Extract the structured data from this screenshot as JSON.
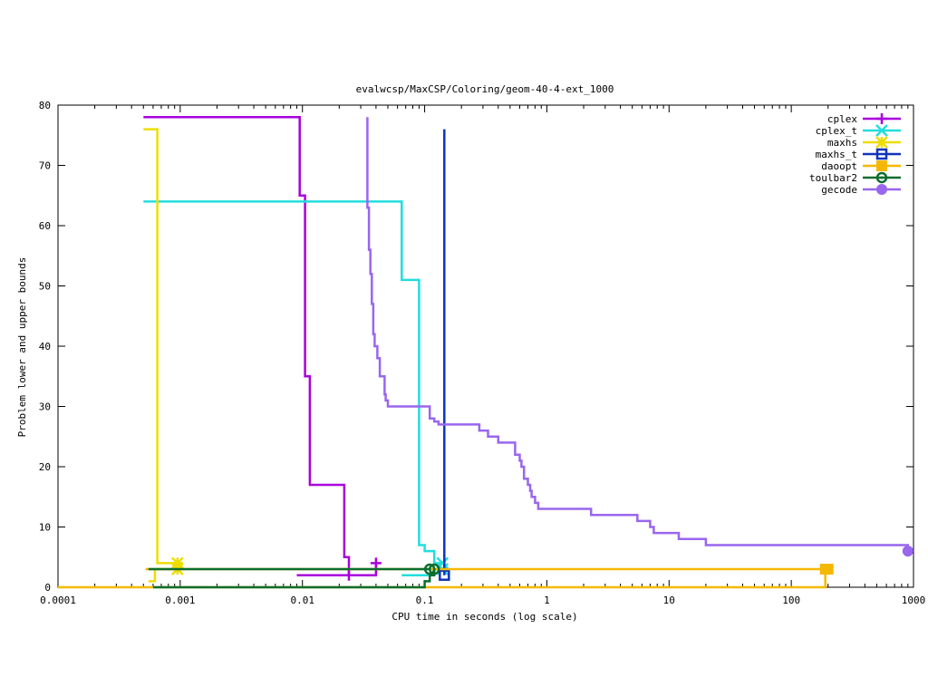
{
  "chart_data": {
    "type": "line",
    "title": "evalwcsp/MaxCSP/Coloring/geom-40-4-ext_1000",
    "xlabel": "CPU time in seconds (log scale)",
    "ylabel": "Problem lower and upper bounds",
    "x_scale": "log",
    "xlim": [
      0.0001,
      1000
    ],
    "ylim": [
      0,
      80
    ],
    "x_ticks": [
      0.0001,
      0.001,
      0.01,
      0.1,
      1,
      10,
      100,
      1000
    ],
    "x_tick_labels": [
      "0.0001",
      "0.001",
      "0.01",
      "0.1",
      "1",
      "10",
      "100",
      "1000"
    ],
    "y_ticks": [
      0,
      10,
      20,
      30,
      40,
      50,
      60,
      70,
      80
    ],
    "y_tick_labels": [
      "0",
      "10",
      "20",
      "30",
      "40",
      "50",
      "60",
      "70",
      "80"
    ],
    "grid": false,
    "legend_position": "top-right",
    "series": [
      {
        "name": "cplex",
        "color": "#aa00dd",
        "marker": "plus",
        "segments": [
          [
            [
              0.0005,
              78
            ],
            [
              0.0095,
              78
            ],
            [
              0.0095,
              65
            ],
            [
              0.0105,
              65
            ],
            [
              0.0105,
              35
            ],
            [
              0.0115,
              35
            ],
            [
              0.0115,
              17
            ],
            [
              0.022,
              17
            ],
            [
              0.022,
              5
            ],
            [
              0.024,
              5
            ],
            [
              0.024,
              2
            ]
          ],
          [
            [
              0.009,
              2
            ],
            [
              0.024,
              2
            ],
            [
              0.04,
              2
            ],
            [
              0.04,
              4
            ]
          ]
        ]
      },
      {
        "name": "cplex_t",
        "color": "#22dddd",
        "marker": "x",
        "segments": [
          [
            [
              0.0005,
              64
            ],
            [
              0.065,
              64
            ],
            [
              0.065,
              51
            ],
            [
              0.09,
              51
            ],
            [
              0.09,
              7
            ],
            [
              0.1,
              7
            ],
            [
              0.1,
              6
            ],
            [
              0.12,
              6
            ],
            [
              0.12,
              4
            ],
            [
              0.14,
              4
            ]
          ],
          [
            [
              0.065,
              2
            ],
            [
              0.12,
              2
            ],
            [
              0.12,
              3
            ],
            [
              0.14,
              3
            ]
          ]
        ]
      },
      {
        "name": "maxhs",
        "color": "#eedd00",
        "marker": "star",
        "segments": [
          [
            [
              0.0005,
              76
            ],
            [
              0.00065,
              76
            ],
            [
              0.00065,
              4
            ],
            [
              0.00095,
              4
            ]
          ],
          [
            [
              0.00055,
              1
            ],
            [
              0.00062,
              1
            ],
            [
              0.00062,
              3
            ],
            [
              0.00095,
              3
            ]
          ]
        ]
      },
      {
        "name": "maxhs_t",
        "color": "#1133bb",
        "marker": "square",
        "segments": [
          [
            [
              0.145,
              76
            ],
            [
              0.145,
              2
            ]
          ]
        ]
      },
      {
        "name": "daoopt",
        "color": "#f5b800",
        "marker": "filled-square",
        "segments": [
          [
            [
              0.0001,
              0
            ],
            [
              190,
              0
            ],
            [
              190,
              3
            ]
          ],
          [
            [
              0.00052,
              3
            ],
            [
              200,
              3
            ]
          ]
        ]
      },
      {
        "name": "toulbar2",
        "color": "#0b6e2e",
        "marker": "circle",
        "segments": [
          [
            [
              0.00055,
              3
            ],
            [
              0.11,
              3
            ]
          ],
          [
            [
              0.0006,
              0
            ],
            [
              0.1,
              0
            ],
            [
              0.1,
              1
            ],
            [
              0.11,
              1
            ],
            [
              0.11,
              2
            ],
            [
              0.12,
              2
            ],
            [
              0.12,
              3
            ]
          ]
        ]
      },
      {
        "name": "gecode",
        "color": "#9966ee",
        "marker": "filled-circle",
        "segments": [
          [
            [
              0.034,
              78
            ],
            [
              0.034,
              63
            ],
            [
              0.035,
              63
            ],
            [
              0.035,
              56
            ],
            [
              0.036,
              56
            ],
            [
              0.036,
              52
            ],
            [
              0.037,
              52
            ],
            [
              0.037,
              47
            ],
            [
              0.038,
              47
            ],
            [
              0.038,
              42
            ],
            [
              0.039,
              42
            ],
            [
              0.039,
              40
            ],
            [
              0.041,
              40
            ],
            [
              0.041,
              38
            ],
            [
              0.043,
              38
            ],
            [
              0.043,
              35
            ],
            [
              0.047,
              35
            ],
            [
              0.047,
              32
            ],
            [
              0.048,
              32
            ],
            [
              0.048,
              31
            ],
            [
              0.05,
              31
            ],
            [
              0.05,
              30
            ],
            [
              0.11,
              30
            ],
            [
              0.11,
              28
            ],
            [
              0.12,
              28
            ],
            [
              0.12,
              27.5
            ],
            [
              0.13,
              27.5
            ],
            [
              0.13,
              27
            ],
            [
              0.28,
              27
            ],
            [
              0.28,
              26
            ],
            [
              0.33,
              26
            ],
            [
              0.33,
              25
            ],
            [
              0.4,
              25
            ],
            [
              0.4,
              24
            ],
            [
              0.55,
              24
            ],
            [
              0.55,
              22
            ],
            [
              0.6,
              22
            ],
            [
              0.6,
              21
            ],
            [
              0.62,
              21
            ],
            [
              0.62,
              20
            ],
            [
              0.65,
              20
            ],
            [
              0.65,
              18
            ],
            [
              0.7,
              18
            ],
            [
              0.7,
              17
            ],
            [
              0.73,
              17
            ],
            [
              0.73,
              16
            ],
            [
              0.75,
              16
            ],
            [
              0.75,
              15
            ],
            [
              0.8,
              15
            ],
            [
              0.8,
              14
            ],
            [
              0.85,
              14
            ],
            [
              0.85,
              13
            ],
            [
              2.3,
              13
            ],
            [
              2.3,
              12
            ],
            [
              5.5,
              12
            ],
            [
              5.5,
              11
            ],
            [
              7,
              11
            ],
            [
              7,
              10
            ],
            [
              7.5,
              10
            ],
            [
              7.5,
              9
            ],
            [
              12,
              9
            ],
            [
              12,
              8
            ],
            [
              20,
              8
            ],
            [
              20,
              7
            ],
            [
              900,
              7
            ],
            [
              900,
              6
            ]
          ]
        ]
      }
    ]
  }
}
